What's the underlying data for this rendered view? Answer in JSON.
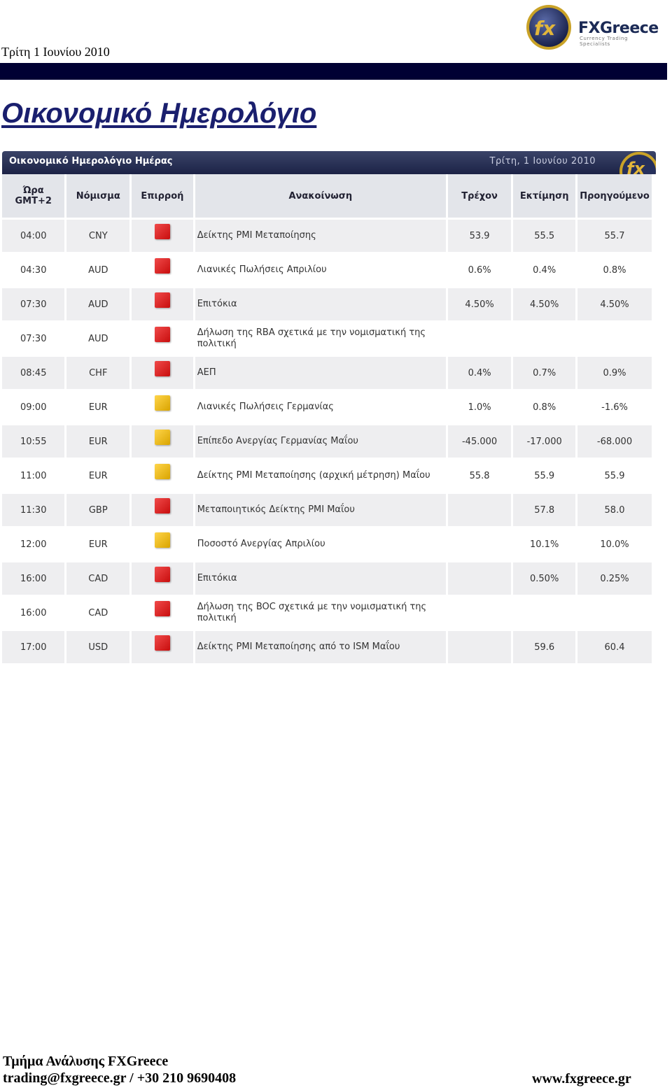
{
  "header": {
    "date": "Τρίτη 1 Ιουνίου 2010",
    "logo_text": "FXGreece",
    "logo_subtext": "Currency Trading Specialists",
    "title": "Οικονομικό Ημερολόγιο"
  },
  "calendar": {
    "banner_title": "Οικονομικό Ημερολόγιο Ημέρας",
    "banner_date": "Τρίτη, 1 Ιουνίου 2010",
    "columns": {
      "time_line1": "Ώρα",
      "time_line2": "GMT+2",
      "currency": "Νόμισμα",
      "impact": "Επιρροή",
      "announcement": "Ανακοίνωση",
      "actual": "Τρέχον",
      "forecast": "Εκτίμηση",
      "previous": "Προηγούμενο"
    },
    "colors": {
      "high_impact": "#d91c1c",
      "medium_impact": "#e6b400",
      "positive": "#2e9b2e",
      "negative": "#d22a2a"
    },
    "rows": [
      {
        "time": "04:00",
        "currency": "CNY",
        "impact": "high",
        "announcement": "Δείκτης PMI Μεταποίησης",
        "actual": "53.9",
        "actual_tone": "neg",
        "forecast": "55.5",
        "previous": "55.7",
        "previous_tone": "neu"
      },
      {
        "time": "04:30",
        "currency": "AUD",
        "impact": "high",
        "announcement": "Λιανικές Πωλήσεις Απριλίου",
        "actual": "0.6%",
        "actual_tone": "pos",
        "forecast": "0.4%",
        "previous": "0.8%",
        "previous_tone": "pos"
      },
      {
        "time": "07:30",
        "currency": "AUD",
        "impact": "high",
        "announcement": "Επιτόκια",
        "actual": "4.50%",
        "actual_tone": "neu",
        "forecast": "4.50%",
        "previous": "4.50%",
        "previous_tone": "neu"
      },
      {
        "time": "07:30",
        "currency": "AUD",
        "impact": "high",
        "announcement": "Δήλωση της RBA σχετικά με την νομισματική της πολιτική",
        "actual": "",
        "actual_tone": "neu",
        "forecast": "",
        "previous": "",
        "previous_tone": "neu"
      },
      {
        "time": "08:45",
        "currency": "CHF",
        "impact": "high",
        "announcement": "ΑΕΠ",
        "actual": "0.4%",
        "actual_tone": "neg",
        "forecast": "0.7%",
        "previous": "0.9%",
        "previous_tone": "pos"
      },
      {
        "time": "09:00",
        "currency": "EUR",
        "impact": "medium",
        "announcement": "Λιανικές Πωλήσεις Γερμανίας",
        "actual": "1.0%",
        "actual_tone": "pos",
        "forecast": "0.8%",
        "previous": "-1.6%",
        "previous_tone": "pos"
      },
      {
        "time": "10:55",
        "currency": "EUR",
        "impact": "medium",
        "announcement": "Επίπεδο Ανεργίας Γερμανίας Μαΐου",
        "actual": "-45.000",
        "actual_tone": "pos",
        "forecast": "-17.000",
        "previous": "-68.000",
        "previous_tone": "neu"
      },
      {
        "time": "11:00",
        "currency": "EUR",
        "impact": "medium",
        "announcement": "Δείκτης PMI Μεταποίησης (αρχική μέτρηση) Μαΐου",
        "actual": "55.8",
        "actual_tone": "neu",
        "forecast": "55.9",
        "previous": "55.9",
        "previous_tone": "neu"
      },
      {
        "time": "11:30",
        "currency": "GBP",
        "impact": "high",
        "announcement": "Μεταποιητικός Δείκτης PMI Μαΐου",
        "actual": "",
        "actual_tone": "neu",
        "forecast": "57.8",
        "previous": "58.0",
        "previous_tone": "neu"
      },
      {
        "time": "12:00",
        "currency": "EUR",
        "impact": "medium",
        "announcement": "Ποσοστό Ανεργίας Απριλίου",
        "actual": "",
        "actual_tone": "neu",
        "forecast": "10.1%",
        "previous": "10.0%",
        "previous_tone": "neu"
      },
      {
        "time": "16:00",
        "currency": "CAD",
        "impact": "high",
        "announcement": "Επιτόκια",
        "actual": "",
        "actual_tone": "neu",
        "forecast": "0.50%",
        "previous": "0.25%",
        "previous_tone": "neu"
      },
      {
        "time": "16:00",
        "currency": "CAD",
        "impact": "high",
        "announcement": "Δήλωση της BOC σχετικά με την νομισματική της πολιτική",
        "actual": "",
        "actual_tone": "neu",
        "forecast": "",
        "previous": "",
        "previous_tone": "neu"
      },
      {
        "time": "17:00",
        "currency": "USD",
        "impact": "high",
        "announcement": "Δείκτης PMI Μεταποίησης από το ISM Μαΐου",
        "actual": "",
        "actual_tone": "neu",
        "forecast": "59.6",
        "previous": "60.4",
        "previous_tone": "neu"
      }
    ]
  },
  "footer": {
    "department": "Τμήμα Ανάλυσης  FXGreece",
    "contact": "trading@fxgreece.gr  / +30 210 9690408",
    "website": "www.fxgreece.gr"
  }
}
